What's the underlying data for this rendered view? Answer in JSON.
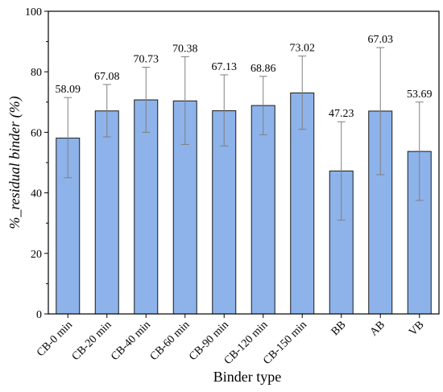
{
  "chart_data": {
    "type": "bar",
    "categories": [
      "CB-0 min",
      "CB-20 min",
      "CB-40 min",
      "CB-60 min",
      "CB-90 min",
      "CB-120 min",
      "CB-150 min",
      "BB",
      "AB",
      "VB"
    ],
    "values": [
      58.09,
      67.08,
      70.73,
      70.38,
      67.13,
      68.86,
      73.02,
      47.23,
      67.03,
      53.69
    ],
    "value_labels": [
      "58.09",
      "67.08",
      "70.73",
      "70.38",
      "67.13",
      "68.86",
      "73.02",
      "47.23",
      "67.03",
      "53.69"
    ],
    "error_low": [
      45,
      58.5,
      60,
      56,
      55.5,
      59.2,
      61,
      31,
      46,
      37.5
    ],
    "error_high": [
      71.5,
      75.8,
      81.5,
      85,
      79,
      78.5,
      85.2,
      63.5,
      88,
      70
    ],
    "xlabel": "Binder type",
    "ylabel": "%_residual binder (%)",
    "ylim": [
      0,
      100
    ],
    "yticks": [
      "0",
      "20",
      "40",
      "60",
      "80",
      "100"
    ],
    "grid": false,
    "colors": {
      "bar_fill": "#8db3ea",
      "bar_stroke": "#1a1a1a",
      "error_bar": "#7f7f7f",
      "axis": "#000000"
    }
  }
}
